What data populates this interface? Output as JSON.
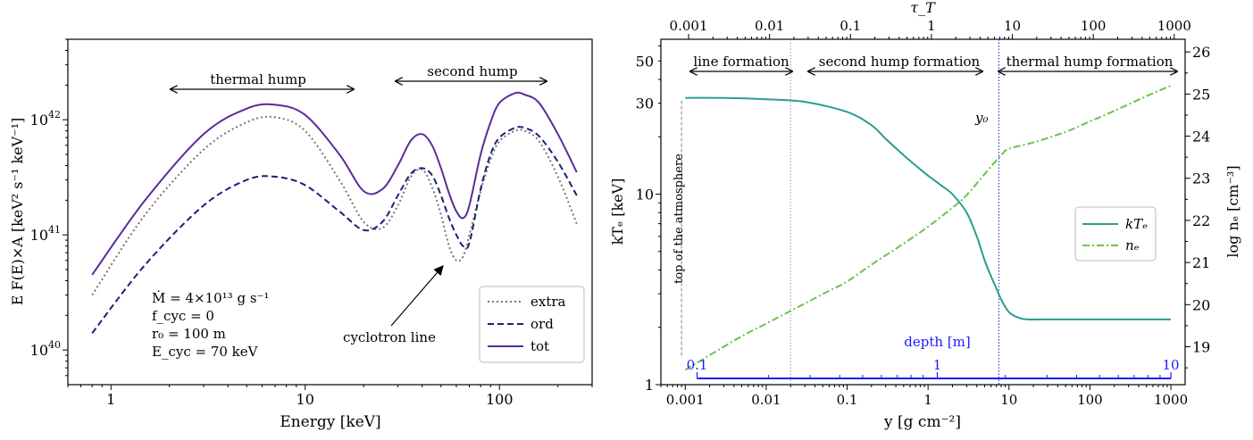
{
  "chart_data": [
    {
      "type": "line",
      "xlabel": "Energy [keV]",
      "ylabel": "E F(E)×A [keV² s⁻¹ keV⁻¹]",
      "xscale": "log",
      "yscale": "log",
      "xlim": [
        0.6,
        300
      ],
      "ylim": [
        5e+39,
        5e+42
      ],
      "x_ticks": [
        {
          "v": 1,
          "label": "1"
        },
        {
          "v": 10,
          "label": "10"
        },
        {
          "v": 100,
          "label": "100"
        }
      ],
      "y_ticks": [
        {
          "v": 1e+40,
          "base": "10",
          "exp": "40"
        },
        {
          "v": 1e+41,
          "base": "10",
          "exp": "41"
        },
        {
          "v": 1e+42,
          "base": "10",
          "exp": "42"
        }
      ],
      "legend": {
        "position": "lower right",
        "entries": [
          "extra",
          "ord",
          "tot"
        ]
      },
      "series": [
        {
          "name": "extra",
          "style": "dotted",
          "color": "#777777",
          "x": [
            0.8,
            1.5,
            3,
            5,
            7,
            10,
            15,
            20,
            25,
            30,
            35,
            40,
            45,
            50,
            55,
            60,
            65,
            70,
            80,
            90,
            100,
            120,
            135,
            160,
            200,
            250
          ],
          "y": [
            3e+40,
            1.5e+41,
            5.5e+41,
            9.5e+41,
            1.05e+42,
            8e+41,
            3e+41,
            1.3e+41,
            1.15e+41,
            1.8e+41,
            3.2e+41,
            3.7e+41,
            2.6e+41,
            1.5e+41,
            8e+40,
            6e+40,
            6.5e+40,
            1e+41,
            2.4e+41,
            4.5e+41,
            6.5e+41,
            8e+41,
            8e+41,
            6.5e+41,
            3.2e+41,
            1.25e+41
          ]
        },
        {
          "name": "ord",
          "style": "dashed",
          "color": "#1f1f7a",
          "x": [
            0.8,
            1.5,
            3,
            5,
            7,
            10,
            15,
            20,
            25,
            30,
            35,
            40,
            45,
            50,
            55,
            60,
            65,
            70,
            80,
            90,
            100,
            120,
            135,
            160,
            200,
            250
          ],
          "y": [
            1.4e+40,
            5.5e+40,
            1.8e+41,
            3e+41,
            3.2e+41,
            2.7e+41,
            1.6e+41,
            1.1e+41,
            1.3e+41,
            2.2e+41,
            3.4e+41,
            3.8e+41,
            3.3e+41,
            2.2e+41,
            1.4e+41,
            1e+41,
            8e+40,
            8.5e+40,
            2.5e+41,
            5e+41,
            7e+41,
            8.5e+41,
            8.5e+41,
            7.2e+41,
            4.3e+41,
            2.2e+41
          ]
        },
        {
          "name": "tot",
          "style": "solid",
          "color": "#5b2b9b",
          "x": [
            0.8,
            1.5,
            3,
            5,
            7,
            10,
            15,
            20,
            25,
            30,
            35,
            40,
            45,
            50,
            55,
            60,
            65,
            70,
            80,
            90,
            100,
            120,
            135,
            160,
            200,
            250
          ],
          "y": [
            4.5e+40,
            2e+41,
            7.5e+41,
            1.25e+42,
            1.35e+42,
            1.1e+42,
            5e+41,
            2.4e+41,
            2.5e+41,
            4e+41,
            6.6e+41,
            7.5e+41,
            6e+41,
            3.8e+41,
            2.3e+41,
            1.6e+41,
            1.4e+41,
            1.8e+41,
            5e+41,
            9.5e+41,
            1.4e+42,
            1.7e+42,
            1.65e+42,
            1.4e+42,
            7.5e+41,
            3.5e+41
          ]
        }
      ],
      "annotations": [
        {
          "text": "thermal hump",
          "arrow": "double",
          "x_from": 2,
          "x_to": 20,
          "y": 1.8e+42
        },
        {
          "text": "second hump",
          "arrow": "double",
          "x_from": 30,
          "x_to": 190,
          "y": 2.6e+42
        },
        {
          "text": "cyclotron line",
          "arrow_to": [
            60,
            5.8e+40
          ]
        }
      ],
      "params": [
        {
          "text": "Ṁ = 4×10¹³ g s⁻¹"
        },
        {
          "text": "f_cyc = 0"
        },
        {
          "text": "r₀ = 100 m"
        },
        {
          "text": "E_cyc = 70 keV"
        }
      ]
    },
    {
      "type": "line",
      "xlabel": "y [g cm⁻²]",
      "ylabel": "kTₑ [keV]",
      "ylabel_right": "log nₑ [cm⁻³]",
      "top_axis_label": "τ_T",
      "xscale": "log",
      "yscale": "log",
      "xlim": [
        0.0005,
        1500
      ],
      "ylim": [
        1,
        65
      ],
      "ylim_right": [
        18.1,
        26.3
      ],
      "x_ticks": [
        {
          "v": 0.001,
          "label": "0.001"
        },
        {
          "v": 0.01,
          "label": "0.01"
        },
        {
          "v": 0.1,
          "label": "0.1"
        },
        {
          "v": 1,
          "label": "1"
        },
        {
          "v": 10,
          "label": "10"
        },
        {
          "v": 100,
          "label": "100"
        },
        {
          "v": 1000,
          "label": "1000"
        }
      ],
      "y_ticks": [
        {
          "v": 1,
          "label": "1"
        },
        {
          "v": 10,
          "label": "10"
        },
        {
          "v": 30,
          "label": "30"
        },
        {
          "v": 50,
          "label": "50"
        }
      ],
      "y_ticks_right": [
        19,
        20,
        21,
        22,
        23,
        24,
        25,
        26
      ],
      "top_ticks": [
        {
          "label": "0.001",
          "at_y": 0.0011
        },
        {
          "label": "0.01",
          "at_y": 0.011
        },
        {
          "label": "0.1",
          "at_y": 0.11
        },
        {
          "label": "1",
          "at_y": 1.1
        },
        {
          "label": "10",
          "at_y": 11
        },
        {
          "label": "100",
          "at_y": 110
        },
        {
          "label": "1000",
          "at_y": 1100
        }
      ],
      "legend": {
        "position": "center right",
        "entries": [
          "kTₑ",
          "nₑ"
        ]
      },
      "series": [
        {
          "name": "kTₑ",
          "axis": "left",
          "style": "solid",
          "color": "#2a9d8f",
          "x": [
            0.001,
            0.003,
            0.01,
            0.03,
            0.1,
            0.2,
            0.3,
            0.5,
            0.8,
            1,
            1.5,
            2,
            3,
            4,
            5,
            6,
            7,
            8,
            10,
            13,
            17,
            25,
            50,
            100,
            1000
          ],
          "y": [
            32,
            32,
            31.5,
            30.5,
            27,
            23,
            19.5,
            16,
            13.5,
            12.5,
            11,
            10,
            8,
            6,
            4.5,
            3.7,
            3.2,
            2.8,
            2.4,
            2.25,
            2.2,
            2.2,
            2.2,
            2.2,
            2.2
          ]
        },
        {
          "name": "nₑ",
          "axis": "right",
          "style": "dashdot",
          "color": "#6cc24a",
          "x": [
            0.001,
            0.002,
            0.005,
            0.01,
            0.02,
            0.05,
            0.1,
            0.2,
            0.5,
            1,
            2,
            3,
            5,
            8,
            10,
            20,
            50,
            100,
            200,
            500,
            1000
          ],
          "y": [
            18.45,
            18.8,
            19.25,
            19.55,
            19.85,
            20.25,
            20.55,
            20.95,
            21.45,
            21.85,
            22.3,
            22.6,
            23.1,
            23.55,
            23.7,
            23.85,
            24.1,
            24.35,
            24.6,
            24.95,
            25.2
          ]
        }
      ],
      "annotations": [
        {
          "text": "line formation",
          "arrow": "double",
          "x_from": 0.001,
          "x_to": 0.02
        },
        {
          "text": "second hump formation",
          "arrow": "double",
          "x_from": 0.025,
          "x_to": 6.5
        },
        {
          "text": "thermal hump formation",
          "arrow": "double",
          "x_from": 8,
          "x_to": 1000
        },
        {
          "text": "y₀",
          "at_x": 7.5
        },
        {
          "text": "top of the atmosphere",
          "at_x": 0.0009
        }
      ],
      "vlines": [
        {
          "x": 0.0009,
          "style": "dashed",
          "color": "#888888"
        },
        {
          "x": 0.02,
          "style": "dotted",
          "color": "#999999"
        },
        {
          "x": 7.5,
          "style": "dotted",
          "color": "#1a1aff"
        }
      ],
      "depth_axis": {
        "label": "depth [m]",
        "color": "#1a1aff",
        "ticks": [
          {
            "label": "0.1",
            "at_y": 0.0014
          },
          {
            "label": "1",
            "at_y": 1.3
          },
          {
            "label": "10",
            "at_y": 1000
          }
        ]
      }
    }
  ]
}
